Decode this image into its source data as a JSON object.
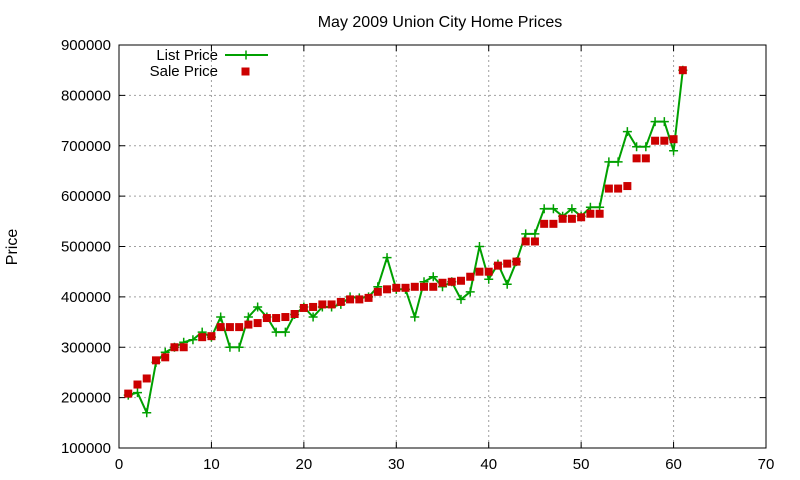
{
  "chart_data": {
    "type": "line",
    "title": "May 2009 Union City Home Prices",
    "xlabel": "",
    "ylabel": "Price",
    "xlim": [
      0,
      70
    ],
    "ylim": [
      100000,
      900000
    ],
    "xticks": [
      "0",
      "10",
      "20",
      "30",
      "40",
      "50",
      "60",
      "70"
    ],
    "yticks": [
      "100000",
      "200000",
      "300000",
      "400000",
      "500000",
      "600000",
      "700000",
      "800000",
      "900000"
    ],
    "grid": true,
    "legend_position": "top-left",
    "colors": {
      "list": "#00a000",
      "sale": "#cc0000"
    },
    "series": [
      {
        "name": "List Price",
        "style": "line-plus",
        "x": [
          1,
          2,
          3,
          4,
          5,
          6,
          7,
          8,
          9,
          10,
          11,
          12,
          13,
          14,
          15,
          16,
          17,
          18,
          19,
          20,
          21,
          22,
          23,
          24,
          25,
          26,
          27,
          28,
          29,
          30,
          31,
          32,
          33,
          34,
          35,
          36,
          37,
          38,
          39,
          40,
          41,
          42,
          43,
          44,
          45,
          46,
          47,
          48,
          49,
          50,
          51,
          52,
          53,
          54,
          55,
          56,
          57,
          58,
          59,
          60,
          61
        ],
        "values": [
          205000,
          210000,
          170000,
          270000,
          290000,
          300000,
          310000,
          315000,
          330000,
          320000,
          360000,
          300000,
          300000,
          360000,
          380000,
          360000,
          330000,
          330000,
          365000,
          380000,
          360000,
          380000,
          380000,
          385000,
          400000,
          398000,
          400000,
          420000,
          478000,
          415000,
          415000,
          360000,
          430000,
          440000,
          420000,
          430000,
          395000,
          410000,
          500000,
          435000,
          465000,
          425000,
          470000,
          525000,
          525000,
          575000,
          575000,
          560000,
          575000,
          560000,
          578000,
          578000,
          668000,
          668000,
          728000,
          698000,
          698000,
          748000,
          748000,
          690000,
          850000
        ]
      },
      {
        "name": "Sale Price",
        "style": "square-markers",
        "x": [
          1,
          2,
          3,
          4,
          5,
          6,
          7,
          9,
          10,
          11,
          12,
          13,
          14,
          15,
          16,
          17,
          18,
          19,
          20,
          21,
          22,
          23,
          24,
          25,
          26,
          27,
          28,
          29,
          30,
          31,
          32,
          33,
          34,
          35,
          36,
          37,
          38,
          39,
          40,
          41,
          42,
          43,
          44,
          45,
          46,
          47,
          48,
          49,
          50,
          51,
          52,
          53,
          54,
          55,
          56,
          57,
          58,
          59,
          60,
          61
        ],
        "values": [
          208000,
          226000,
          238000,
          274000,
          280000,
          300000,
          300000,
          320000,
          322000,
          340000,
          340000,
          340000,
          345000,
          348000,
          358000,
          358000,
          360000,
          366000,
          378000,
          380000,
          385000,
          385000,
          390000,
          395000,
          395000,
          398000,
          410000,
          415000,
          418000,
          418000,
          420000,
          420000,
          420000,
          428000,
          430000,
          432000,
          440000,
          450000,
          450000,
          462000,
          466000,
          470000,
          510000,
          510000,
          545000,
          545000,
          555000,
          555000,
          558000,
          565000,
          565000,
          615000,
          615000,
          620000,
          675000,
          675000,
          710000,
          710000,
          713000,
          850000
        ]
      }
    ]
  }
}
